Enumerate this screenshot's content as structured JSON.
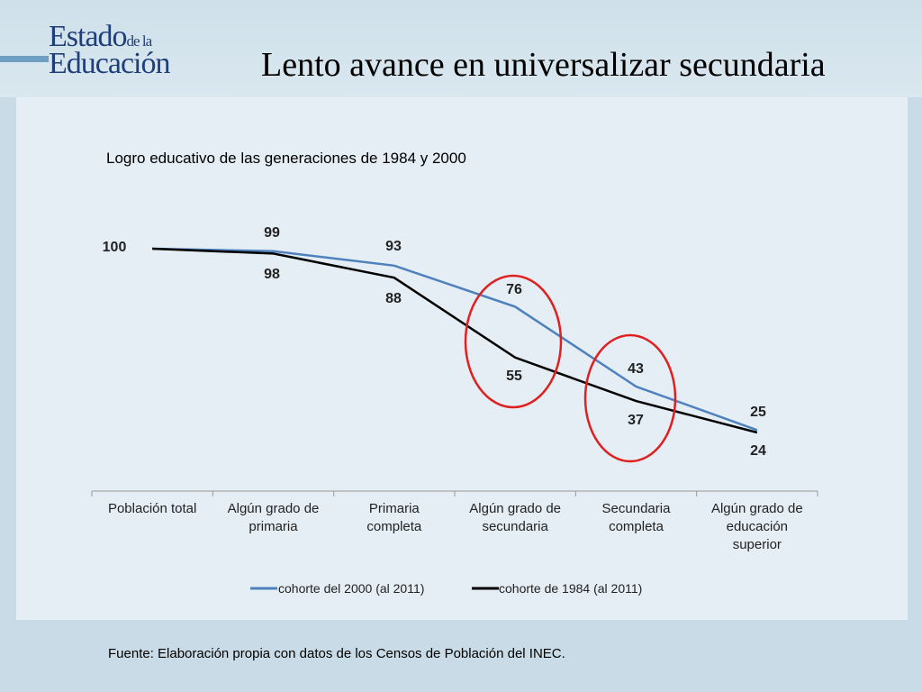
{
  "logo": {
    "line1_main": "Estado",
    "line1_small": "de la",
    "line2": "Educación"
  },
  "slide": {
    "title": "Lento avance en universalizar secundaria",
    "source": "Fuente: Elaboración propia con datos de los Censos de Población del INEC."
  },
  "chart_data": {
    "type": "line",
    "title": "Logro educativo de las generaciones de 1984 y 2000",
    "categories": [
      [
        "Población total"
      ],
      [
        "Algún grado de",
        "primaria"
      ],
      [
        "Primaria",
        "completa"
      ],
      [
        "Algún grado de",
        "secundaria"
      ],
      [
        "Secundaria",
        "completa"
      ],
      [
        "Algún grado de",
        "educación",
        "superior"
      ]
    ],
    "series": [
      {
        "name": "cohorte del 2000 (al 2011)",
        "color": "#4f81bd",
        "values": [
          100,
          99,
          93,
          76,
          43,
          25
        ]
      },
      {
        "name": "cohorte de 1984 (al 2011)",
        "color": "#000000",
        "values": [
          100,
          98,
          88,
          55,
          37,
          24
        ]
      }
    ],
    "data_labels": [
      "100",
      "99",
      "98",
      "93",
      "88",
      "76",
      "55",
      "43",
      "37",
      "25",
      "24"
    ],
    "ylim": [
      0,
      100
    ],
    "grid": false,
    "legend": "bottom",
    "highlight_color": "#e02020"
  }
}
